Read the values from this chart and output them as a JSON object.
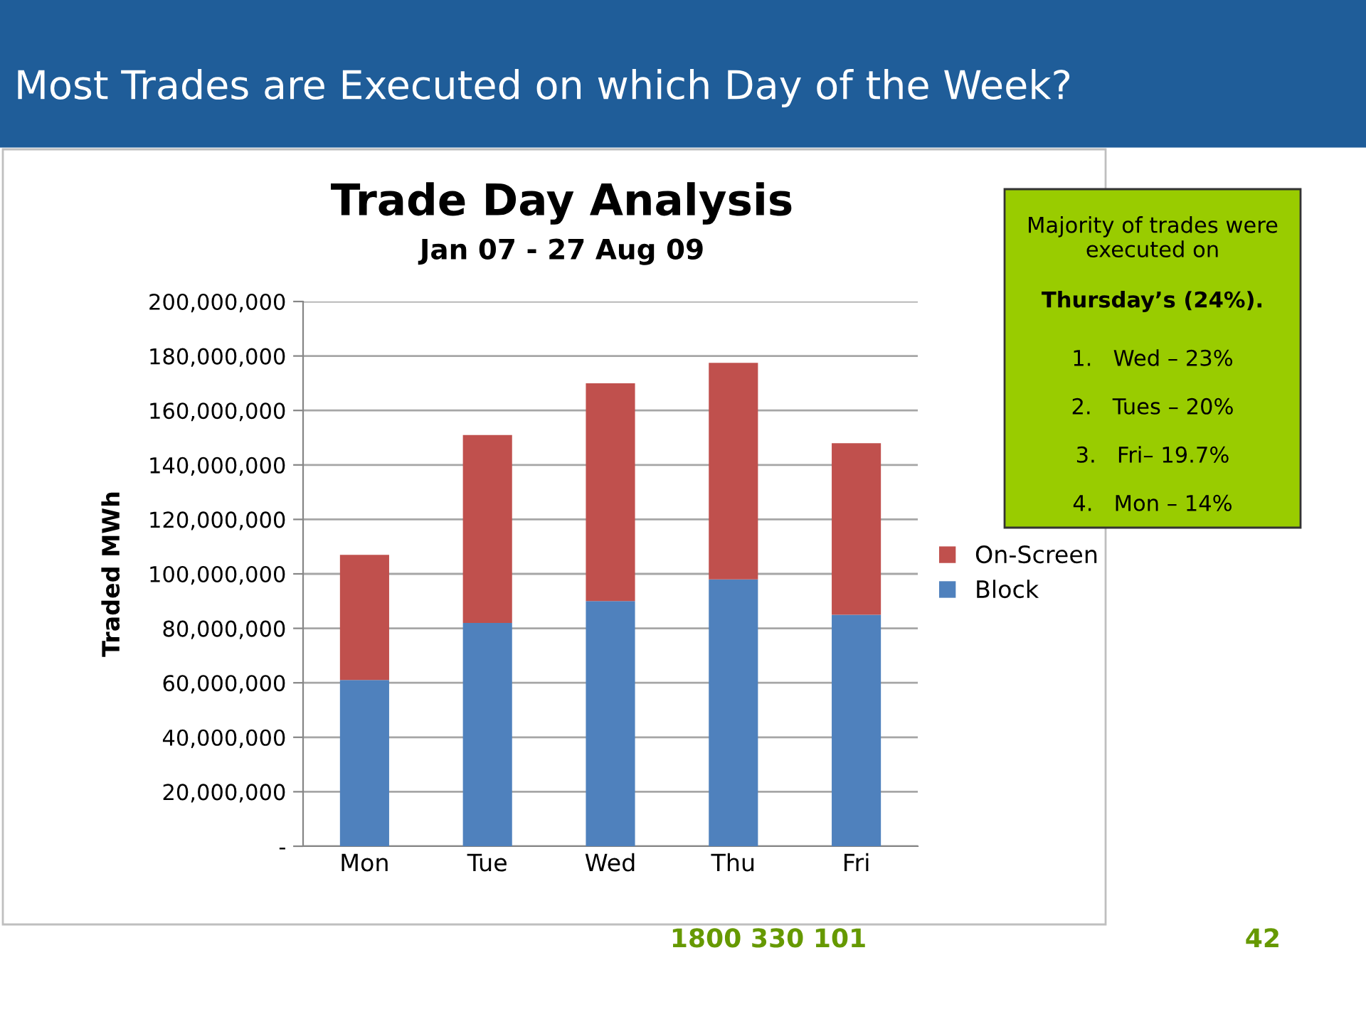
{
  "chart_data": {
    "type": "bar",
    "title": "Trade Day Analysis",
    "subtitle": "Jan 07 - 27 Aug 09",
    "ylabel": "Traded MWh",
    "categories": [
      "Mon",
      "Tue",
      "Wed",
      "Thu",
      "Fri"
    ],
    "stacked": true,
    "series": [
      {
        "name": "Block",
        "color": "#4f81bd",
        "values": [
          61000000,
          82000000,
          90000000,
          98000000,
          85000000
        ]
      },
      {
        "name": "On-Screen",
        "color": "#c0504d",
        "values": [
          46000000,
          69000000,
          80000000,
          79500000,
          63000000
        ]
      }
    ],
    "ylim": [
      0,
      200000000
    ],
    "yticks": [
      {
        "value": 0,
        "label": "-"
      },
      {
        "value": 20000000,
        "label": "20,000,000"
      },
      {
        "value": 40000000,
        "label": "40,000,000"
      },
      {
        "value": 60000000,
        "label": "60,000,000"
      },
      {
        "value": 80000000,
        "label": "80,000,000"
      },
      {
        "value": 100000000,
        "label": "100,000,000"
      },
      {
        "value": 120000000,
        "label": "120,000,000"
      },
      {
        "value": 140000000,
        "label": "140,000,000"
      },
      {
        "value": 160000000,
        "label": "160,000,000"
      },
      {
        "value": 180000000,
        "label": "180,000,000"
      },
      {
        "value": 200000000,
        "label": "200,000,000"
      }
    ],
    "grid": "y",
    "legend": "right",
    "annotations": [
      "Most Trades are Executed on which Day of the Week?",
      "Majority of trades were executed on",
      "Thursday’s (24%).",
      "1.   Wed – 23%",
      "2.   Tues – 20%",
      "3.   Fri– 19.7%",
      "4.   Mon – 14%",
      "1800 330 101",
      "42"
    ]
  }
}
